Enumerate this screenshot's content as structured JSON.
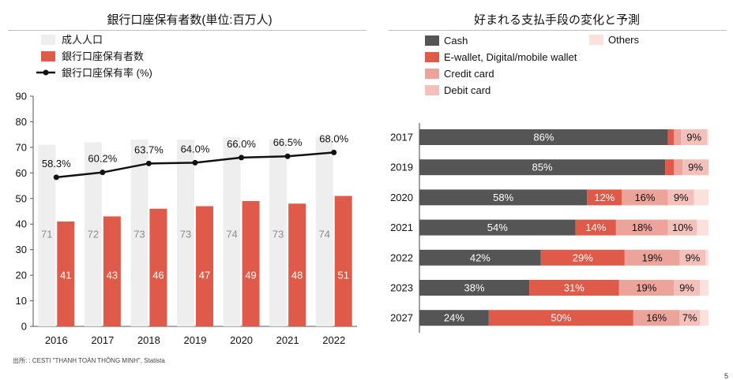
{
  "left_panel": {
    "title": "銀行口座保有者数(単位:百万人)"
  },
  "right_panel": {
    "title": "好まれる支払手段の変化と予測"
  },
  "source": "出所: : CESTI \"THANH TOÁN THÔNG MINH\", Statista",
  "page_number": "5",
  "chart_data": [
    {
      "type": "bar",
      "title": "銀行口座保有者数(単位:百万人)",
      "categories": [
        "2016",
        "2017",
        "2018",
        "2019",
        "2020",
        "2021",
        "2022"
      ],
      "ylim": [
        0,
        90
      ],
      "yticks": [
        0,
        10,
        20,
        30,
        40,
        50,
        60,
        70,
        80,
        90
      ],
      "grid": false,
      "legend_position": "top-left",
      "series": [
        {
          "name": "成人人口",
          "kind": "bar",
          "color": "#eeeeee",
          "label_color": "#8c8c8c",
          "values": [
            71,
            72,
            73,
            73,
            74,
            73,
            74
          ]
        },
        {
          "name": "銀行口座保有者数",
          "kind": "bar",
          "color": "#e05a4a",
          "label_color": "#ffffff",
          "values": [
            41,
            43,
            46,
            47,
            49,
            48,
            51
          ]
        },
        {
          "name": "銀行口座保有率 (%)",
          "kind": "line",
          "color": "#111111",
          "values": [
            58.3,
            60.2,
            63.7,
            64.0,
            66.0,
            66.5,
            68.0
          ],
          "labels": [
            "58.3%",
            "60.2%",
            "63.7%",
            "64.0%",
            "66.0%",
            "66.5%",
            "68.0%"
          ]
        }
      ]
    },
    {
      "type": "bar",
      "orientation": "horizontal",
      "stacked": true,
      "title": "好まれる支払手段の変化と予測",
      "categories": [
        "2017",
        "2019",
        "2020",
        "2021",
        "2022",
        "2023",
        "2027"
      ],
      "legend_position": "top",
      "series": [
        {
          "name": "Cash",
          "color": "#555555",
          "values": [
            86,
            85,
            58,
            54,
            42,
            38,
            24
          ],
          "labels": [
            "86%",
            "85%",
            "58%",
            "54%",
            "42%",
            "38%",
            "24%"
          ]
        },
        {
          "name": "E-wallet, Digital/mobile wallet",
          "color": "#e05a4a",
          "values": [
            2,
            3,
            12,
            14,
            29,
            31,
            50
          ],
          "labels": [
            "",
            "",
            "12%",
            "14%",
            "29%",
            "31%",
            "50%"
          ]
        },
        {
          "name": "Credit card",
          "color": "#eba39a",
          "values": [
            2.5,
            3,
            16,
            18,
            19,
            19,
            16
          ],
          "labels": [
            "",
            "",
            "16%",
            "18%",
            "19%",
            "19%",
            "16%"
          ]
        },
        {
          "name": "Debit card",
          "color": "#f3c1ba",
          "values": [
            9,
            9,
            9,
            10,
            9,
            9,
            7
          ],
          "labels": [
            "9%",
            "9%",
            "9%",
            "10%",
            "9%",
            "9%",
            "7%"
          ]
        },
        {
          "name": "Others",
          "color": "#fbe0dc",
          "values": [
            0.5,
            0,
            5,
            4,
            1,
            3,
            3
          ],
          "labels": [
            "",
            "",
            "",
            "",
            "",
            "",
            ""
          ]
        }
      ]
    }
  ]
}
